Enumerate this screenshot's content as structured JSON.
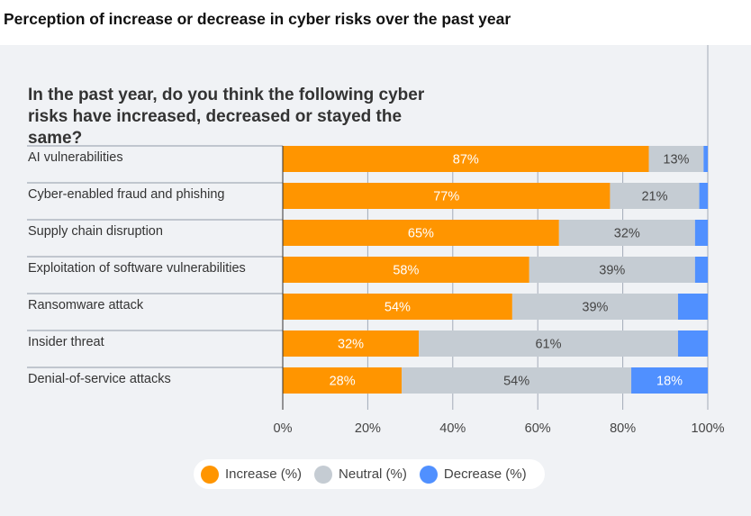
{
  "page_title": "Perception of increase or decrease in cyber risks over the past year",
  "chart_data": {
    "type": "bar",
    "orientation": "horizontal",
    "stacked": true,
    "title": "In the past year, do you think the following cyber risks have increased, decreased or stayed the same?",
    "categories": [
      "AI vulnerabilities",
      "Cyber-enabled fraud and phishing",
      "Supply chain disruption",
      "Exploitation of software vulnerabilities",
      "Ransomware attack",
      "Insider threat",
      "Denial-of-service attacks"
    ],
    "series": [
      {
        "name": "Increase (%)",
        "color": "#ff9500",
        "values": [
          87,
          77,
          65,
          58,
          54,
          32,
          28
        ]
      },
      {
        "name": "Neutral (%)",
        "color": "#c5ccd3",
        "values": [
          13,
          21,
          32,
          39,
          39,
          61,
          54
        ]
      },
      {
        "name": "Decrease (%)",
        "color": "#5090ff",
        "values": [
          1,
          2,
          3,
          3,
          7,
          7,
          18
        ]
      }
    ],
    "shown_labels": [
      [
        true,
        true,
        false
      ],
      [
        true,
        true,
        false
      ],
      [
        true,
        true,
        false
      ],
      [
        true,
        true,
        false
      ],
      [
        true,
        true,
        false
      ],
      [
        true,
        true,
        false
      ],
      [
        true,
        true,
        true
      ]
    ],
    "xlim": [
      0,
      100
    ],
    "xticks": [
      "0%",
      "20%",
      "40%",
      "60%",
      "80%",
      "100%"
    ],
    "grid": true,
    "legend_position": "bottom"
  }
}
